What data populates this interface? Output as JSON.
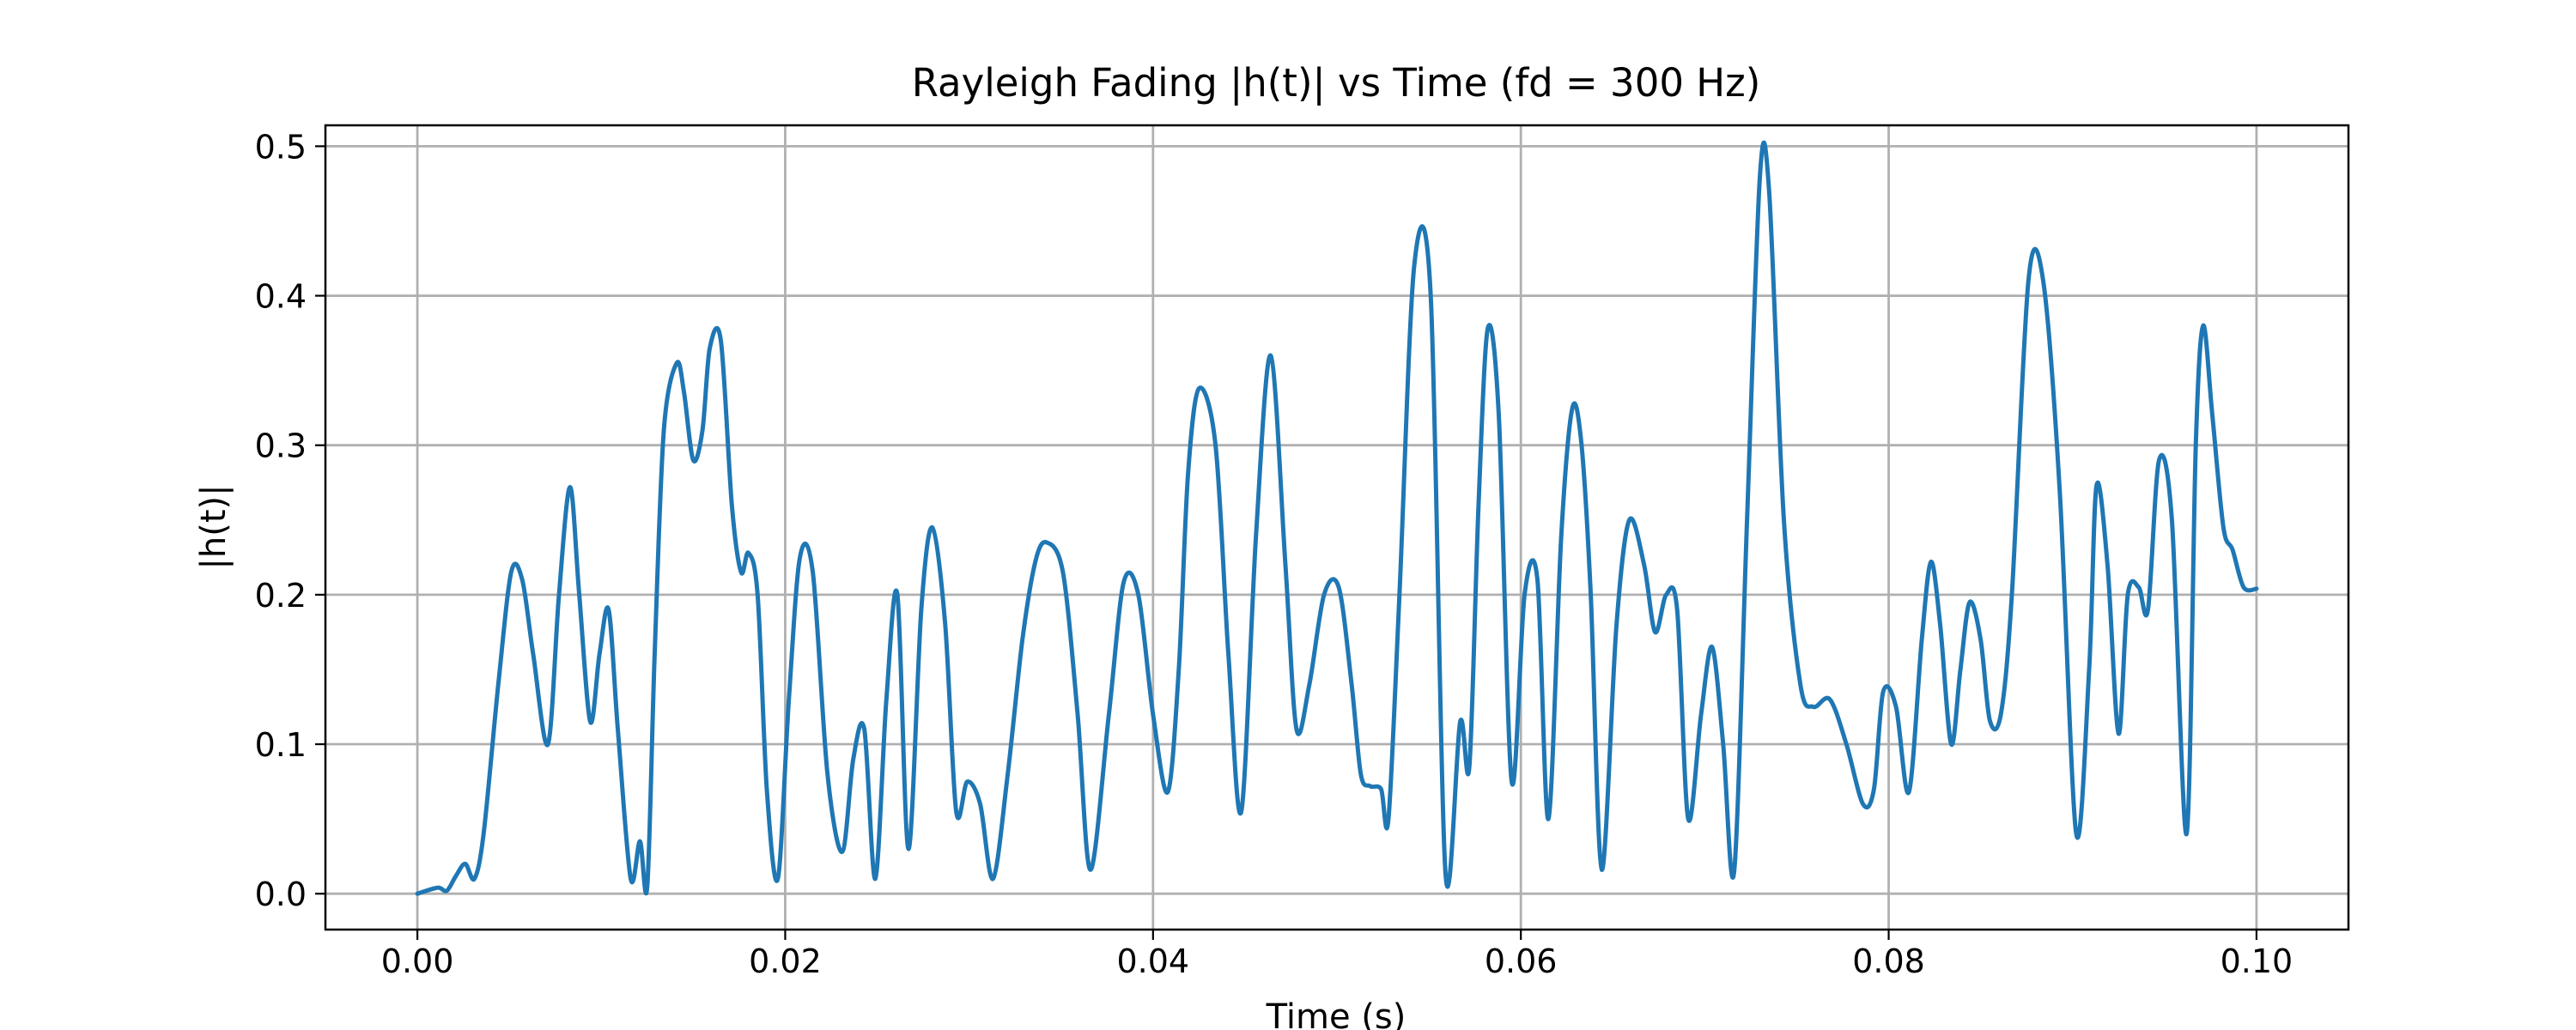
{
  "chart_data": {
    "type": "line",
    "title": "Rayleigh Fading |h(t)| vs Time (fd = 300 Hz)",
    "xlabel": "Time (s)",
    "ylabel": "|h(t)|",
    "xlim": [
      -0.005,
      0.105
    ],
    "ylim": [
      -0.024,
      0.514
    ],
    "grid": true,
    "xticks": [
      0.0,
      0.02,
      0.04,
      0.06,
      0.08,
      0.1
    ],
    "xtick_labels": [
      "0.00",
      "0.02",
      "0.04",
      "0.06",
      "0.08",
      "0.10"
    ],
    "yticks": [
      0.0,
      0.1,
      0.2,
      0.3,
      0.4,
      0.5
    ],
    "ytick_labels": [
      "0.0",
      "0.1",
      "0.2",
      "0.3",
      "0.4",
      "0.5"
    ],
    "series": [
      {
        "color": "#1f77b4",
        "x": [
          0.0,
          0.0011,
          0.0016,
          0.0021,
          0.0026,
          0.0031,
          0.0036,
          0.0044,
          0.0051,
          0.0057,
          0.0063,
          0.0071,
          0.0077,
          0.0083,
          0.0088,
          0.0094,
          0.0099,
          0.0104,
          0.0109,
          0.0116,
          0.0121,
          0.0125,
          0.0129,
          0.0134,
          0.0141,
          0.0145,
          0.015,
          0.0155,
          0.0159,
          0.0165,
          0.0171,
          0.0176,
          0.018,
          0.0185,
          0.019,
          0.0196,
          0.0202,
          0.0208,
          0.0215,
          0.0223,
          0.0231,
          0.0237,
          0.0243,
          0.0249,
          0.0255,
          0.0261,
          0.0267,
          0.0274,
          0.028,
          0.0287,
          0.0293,
          0.0299,
          0.0306,
          0.0313,
          0.0321,
          0.0329,
          0.0336,
          0.0342,
          0.0351,
          0.0359,
          0.0366,
          0.0376,
          0.0384,
          0.0392,
          0.04,
          0.0408,
          0.0414,
          0.0419,
          0.0425,
          0.0434,
          0.0441,
          0.0448,
          0.0456,
          0.0464,
          0.0472,
          0.0478,
          0.0485,
          0.0493,
          0.0501,
          0.0508,
          0.0513,
          0.0518,
          0.0524,
          0.0528,
          0.0534,
          0.0542,
          0.0551,
          0.0559,
          0.0567,
          0.0572,
          0.0577,
          0.0582,
          0.0588,
          0.0595,
          0.0602,
          0.0609,
          0.0615,
          0.0622,
          0.0628,
          0.0633,
          0.0638,
          0.0644,
          0.0652,
          0.0659,
          0.0667,
          0.0673,
          0.0679,
          0.0685,
          0.0691,
          0.0698,
          0.0704,
          0.071,
          0.0716,
          0.0723,
          0.073,
          0.0735,
          0.0743,
          0.0752,
          0.0759,
          0.0768,
          0.0777,
          0.0786,
          0.0792,
          0.0797,
          0.0804,
          0.0811,
          0.0818,
          0.0823,
          0.0828,
          0.0834,
          0.0839,
          0.0844,
          0.085,
          0.0855,
          0.0861,
          0.0867,
          0.0876,
          0.0884,
          0.0893,
          0.0902,
          0.0909,
          0.0913,
          0.0919,
          0.0925,
          0.093,
          0.0936,
          0.0941,
          0.0947,
          0.0954,
          0.0962,
          0.0967,
          0.0971,
          0.0976,
          0.0982,
          0.0987,
          0.0993,
          0.1
        ],
        "y": [
          0.0,
          0.004,
          0.002,
          0.012,
          0.02,
          0.01,
          0.04,
          0.14,
          0.215,
          0.21,
          0.16,
          0.1,
          0.2,
          0.272,
          0.2,
          0.115,
          0.16,
          0.19,
          0.11,
          0.01,
          0.035,
          0.005,
          0.16,
          0.31,
          0.355,
          0.335,
          0.29,
          0.31,
          0.365,
          0.37,
          0.26,
          0.215,
          0.228,
          0.2,
          0.07,
          0.01,
          0.13,
          0.225,
          0.215,
          0.08,
          0.028,
          0.09,
          0.11,
          0.01,
          0.13,
          0.2,
          0.03,
          0.19,
          0.245,
          0.18,
          0.055,
          0.075,
          0.06,
          0.01,
          0.08,
          0.17,
          0.222,
          0.235,
          0.215,
          0.12,
          0.016,
          0.12,
          0.208,
          0.2,
          0.12,
          0.068,
          0.15,
          0.28,
          0.338,
          0.3,
          0.16,
          0.055,
          0.24,
          0.36,
          0.22,
          0.11,
          0.14,
          0.2,
          0.205,
          0.14,
          0.08,
          0.072,
          0.07,
          0.05,
          0.2,
          0.42,
          0.4,
          0.014,
          0.115,
          0.085,
          0.26,
          0.378,
          0.32,
          0.075,
          0.2,
          0.21,
          0.05,
          0.24,
          0.325,
          0.3,
          0.2,
          0.016,
          0.18,
          0.25,
          0.22,
          0.175,
          0.2,
          0.19,
          0.05,
          0.12,
          0.165,
          0.1,
          0.015,
          0.25,
          0.48,
          0.47,
          0.25,
          0.14,
          0.125,
          0.13,
          0.1,
          0.06,
          0.07,
          0.135,
          0.125,
          0.068,
          0.17,
          0.222,
          0.18,
          0.1,
          0.15,
          0.195,
          0.17,
          0.116,
          0.12,
          0.2,
          0.41,
          0.41,
          0.27,
          0.04,
          0.15,
          0.273,
          0.22,
          0.107,
          0.2,
          0.205,
          0.19,
          0.29,
          0.25,
          0.04,
          0.3,
          0.38,
          0.32,
          0.245,
          0.23,
          0.205,
          0.204
        ]
      }
    ]
  }
}
